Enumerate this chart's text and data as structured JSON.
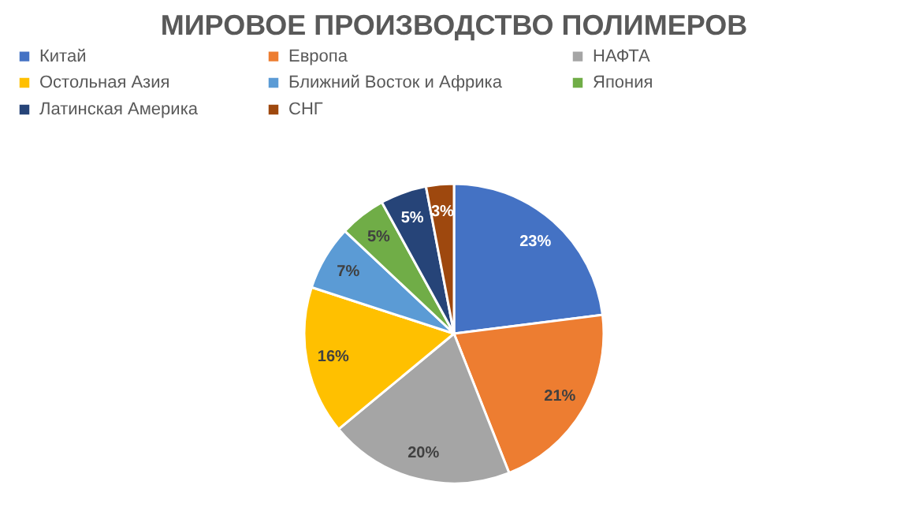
{
  "chart_data": {
    "type": "pie",
    "title": "МИРОВОЕ ПРОИЗВОДСТВО ПОЛИМЕРОВ",
    "categories": [
      "Китай",
      "Европа",
      "НАФТА",
      "Остольная Азия",
      "Ближний Восток и Африка",
      "Япония",
      "Латинская Америка",
      "СНГ"
    ],
    "values": [
      23,
      21,
      20,
      16,
      7,
      5,
      5,
      3
    ],
    "value_labels": [
      "23%",
      "21%",
      "20%",
      "16%",
      "7%",
      "5%",
      "5%",
      "3%"
    ],
    "colors": [
      "#4472c4",
      "#ed7d31",
      "#a5a5a5",
      "#ffc000",
      "#5b9bd5",
      "#70ad47",
      "#264478",
      "#9e480e"
    ],
    "legend": "top"
  }
}
